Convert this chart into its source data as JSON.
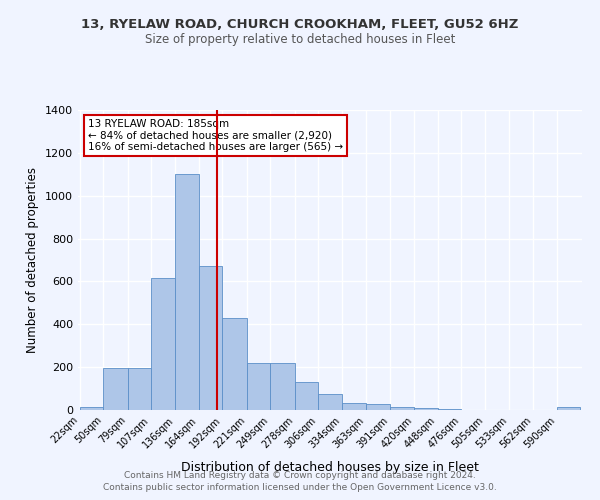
{
  "title1": "13, RYELAW ROAD, CHURCH CROOKHAM, FLEET, GU52 6HZ",
  "title2": "Size of property relative to detached houses in Fleet",
  "xlabel": "Distribution of detached houses by size in Fleet",
  "ylabel": "Number of detached properties",
  "bin_labels": [
    "22sqm",
    "50sqm",
    "79sqm",
    "107sqm",
    "136sqm",
    "164sqm",
    "192sqm",
    "221sqm",
    "249sqm",
    "278sqm",
    "306sqm",
    "334sqm",
    "363sqm",
    "391sqm",
    "420sqm",
    "448sqm",
    "476sqm",
    "505sqm",
    "533sqm",
    "562sqm",
    "590sqm"
  ],
  "bin_edges": [
    22,
    50,
    79,
    107,
    136,
    164,
    192,
    221,
    249,
    278,
    306,
    334,
    363,
    391,
    420,
    448,
    476,
    505,
    533,
    562,
    590
  ],
  "bar_heights": [
    15,
    195,
    195,
    615,
    1100,
    670,
    430,
    220,
    220,
    130,
    75,
    35,
    30,
    15,
    10,
    5,
    0,
    0,
    0,
    0,
    15
  ],
  "bar_color": "#aec6e8",
  "bar_edge_color": "#5b8fc9",
  "vline_x": 185,
  "vline_color": "#cc0000",
  "annotation_lines": [
    "13 RYELAW ROAD: 185sqm",
    "← 84% of detached houses are smaller (2,920)",
    "16% of semi-detached houses are larger (565) →"
  ],
  "annotation_box_color": "#cc0000",
  "ylim": [
    0,
    1400
  ],
  "yticks": [
    0,
    200,
    400,
    600,
    800,
    1000,
    1200,
    1400
  ],
  "background_color": "#f0f4ff",
  "plot_background": "#f0f4ff",
  "grid_color": "#ffffff",
  "footer1": "Contains HM Land Registry data © Crown copyright and database right 2024.",
  "footer2": "Contains public sector information licensed under the Open Government Licence v3.0."
}
